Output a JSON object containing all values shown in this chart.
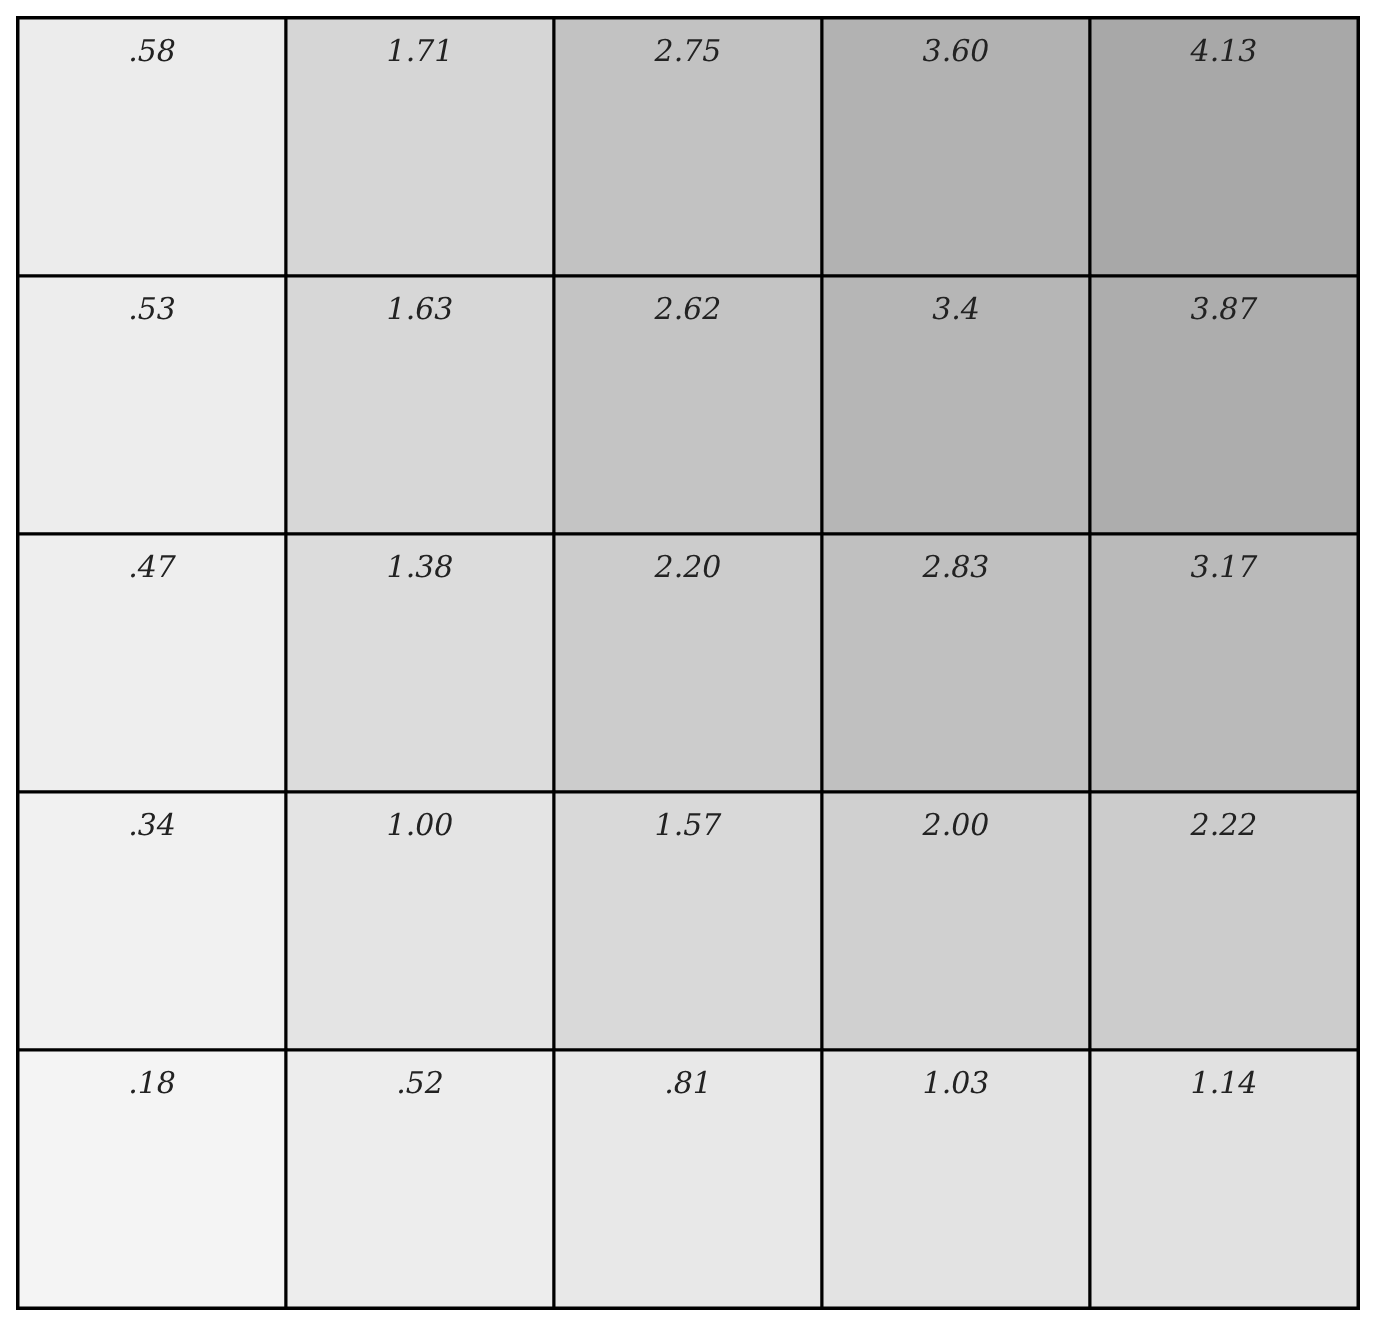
{
  "chart_data": {
    "type": "heatmap",
    "categories": [
      null,
      null,
      null,
      null,
      null
    ],
    "y_categories": [
      null,
      null,
      null,
      null,
      null
    ],
    "cells": [
      [
        0.58,
        1.71,
        2.75,
        3.6,
        4.13
      ],
      [
        0.53,
        1.63,
        2.62,
        3.4,
        3.87
      ],
      [
        0.47,
        1.38,
        2.2,
        2.83,
        3.17
      ],
      [
        0.34,
        1.0,
        1.57,
        2.0,
        2.22
      ],
      [
        0.18,
        0.52,
        0.81,
        1.03,
        1.14
      ]
    ],
    "cell_labels": [
      [
        ".58",
        "1.71",
        "2.75",
        "3.60",
        "4.13"
      ],
      [
        ".53",
        "1.63",
        "2.62",
        "3.4",
        "3.87"
      ],
      [
        ".47",
        "1.38",
        "2.20",
        "2.83",
        "3.17"
      ],
      [
        ".34",
        "1.00",
        "1.57",
        "2.00",
        "2.22"
      ],
      [
        ".18",
        ".52",
        ".81",
        "1.03",
        "1.14"
      ]
    ],
    "tick_labels": false
  }
}
